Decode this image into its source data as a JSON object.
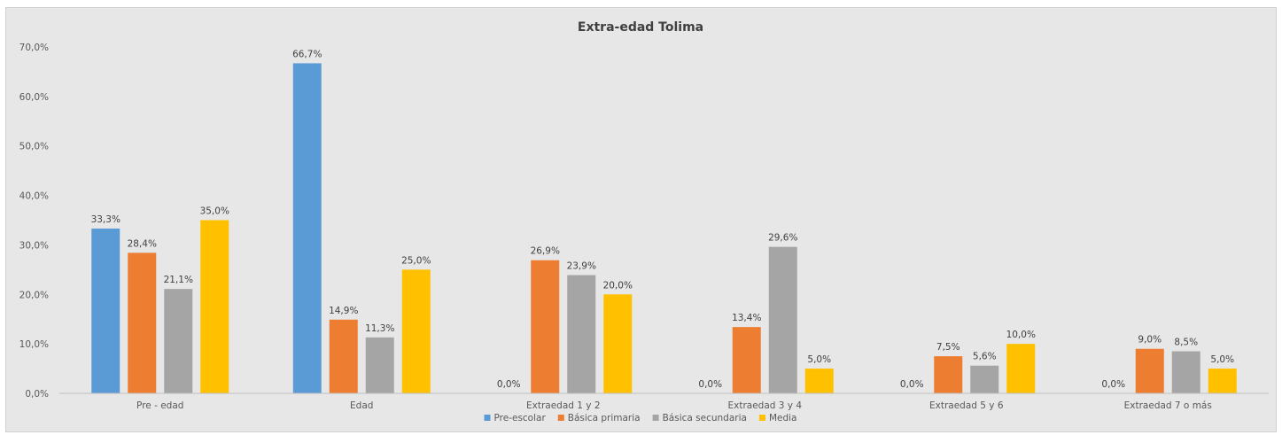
{
  "chart_data": {
    "type": "bar",
    "title": "Extra-edad Tolima",
    "xlabel": "",
    "ylabel": "",
    "ylim": [
      0,
      70
    ],
    "y_ticks": [
      "0,0%",
      "10,0%",
      "20,0%",
      "30,0%",
      "40,0%",
      "50,0%",
      "60,0%",
      "70,0%"
    ],
    "categories": [
      "Pre - edad",
      "Edad",
      "Extraedad 1 y 2",
      "Extraedad 3 y 4",
      "Extraedad 5 y 6",
      "Extraedad 7 o más"
    ],
    "series": [
      {
        "name": "Pre-escolar",
        "color": "#5b9bd5",
        "values": [
          33.3,
          66.7,
          0.0,
          0.0,
          0.0,
          0.0
        ],
        "labels": [
          "33,3%",
          "66,7%",
          "0,0%",
          "0,0%",
          "0,0%",
          "0,0%"
        ]
      },
      {
        "name": "Básica primaria",
        "color": "#ed7d31",
        "values": [
          28.4,
          14.9,
          26.9,
          13.4,
          7.5,
          9.0
        ],
        "labels": [
          "28,4%",
          "14,9%",
          "26,9%",
          "13,4%",
          "7,5%",
          "9,0%"
        ]
      },
      {
        "name": "Básica secundaria",
        "color": "#a5a5a5",
        "values": [
          21.1,
          11.3,
          23.9,
          29.6,
          5.6,
          8.5
        ],
        "labels": [
          "21,1%",
          "11,3%",
          "23,9%",
          "29,6%",
          "5,6%",
          "8,5%"
        ]
      },
      {
        "name": "Media",
        "color": "#ffc000",
        "values": [
          35.0,
          25.0,
          20.0,
          5.0,
          10.0,
          5.0
        ],
        "labels": [
          "35,0%",
          "25,0%",
          "20,0%",
          "5,0%",
          "10,0%",
          "5,0%"
        ]
      }
    ],
    "grid": false,
    "legend_position": "bottom"
  }
}
